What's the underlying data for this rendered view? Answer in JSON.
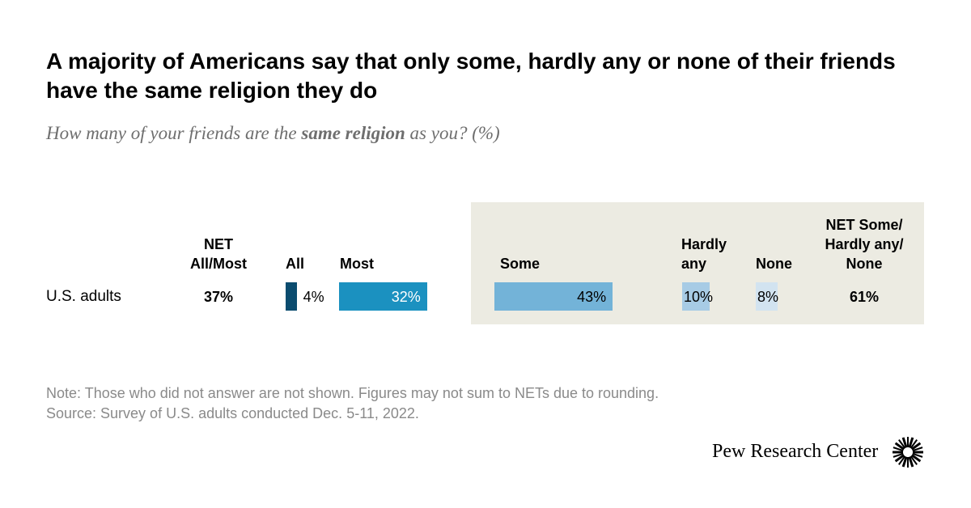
{
  "header": {
    "title": "A majority of Americans say that only some, hardly any or none of their friends have the same religion they do",
    "subtitle_pre": "How many of your friends are the ",
    "subtitle_bold": "same religion",
    "subtitle_post": " as you? (%)"
  },
  "columns": {
    "net_all_most_line1": "NET",
    "net_all_most_line2": "All/Most",
    "all": "All",
    "most": "Most",
    "some": "Some",
    "hardly_line1": "Hardly",
    "hardly_line2": "any",
    "none": "None",
    "net_some_line1": "NET Some/",
    "net_some_line2": "Hardly any/",
    "net_some_line3": "None"
  },
  "chart_data": {
    "type": "bar",
    "orientation": "horizontal",
    "categories": [
      "U.S. adults"
    ],
    "series": [
      {
        "name": "All",
        "values": [
          4
        ],
        "label": "4%",
        "color": "#0b4c6f"
      },
      {
        "name": "Most",
        "values": [
          32
        ],
        "label": "32%",
        "color": "#1b91c0"
      },
      {
        "name": "Some",
        "values": [
          43
        ],
        "label": "43%",
        "color": "#73b3d8"
      },
      {
        "name": "Hardly any",
        "values": [
          10
        ],
        "label": "10%",
        "color": "#a7cbe5"
      },
      {
        "name": "None",
        "values": [
          8
        ],
        "label": "8%",
        "color": "#d2e3f0"
      }
    ],
    "nets": {
      "net_all_most": "37%",
      "net_some_hardly_none": "61%"
    }
  },
  "footer": {
    "note": "Note: Those who did not answer are not shown. Figures may not sum to NETs due to rounding.",
    "source": "Source: Survey of U.S. adults conducted Dec. 5-11, 2022.",
    "logo": "Pew Research Center",
    "logo_icon": "pew-sunburst-icon"
  }
}
